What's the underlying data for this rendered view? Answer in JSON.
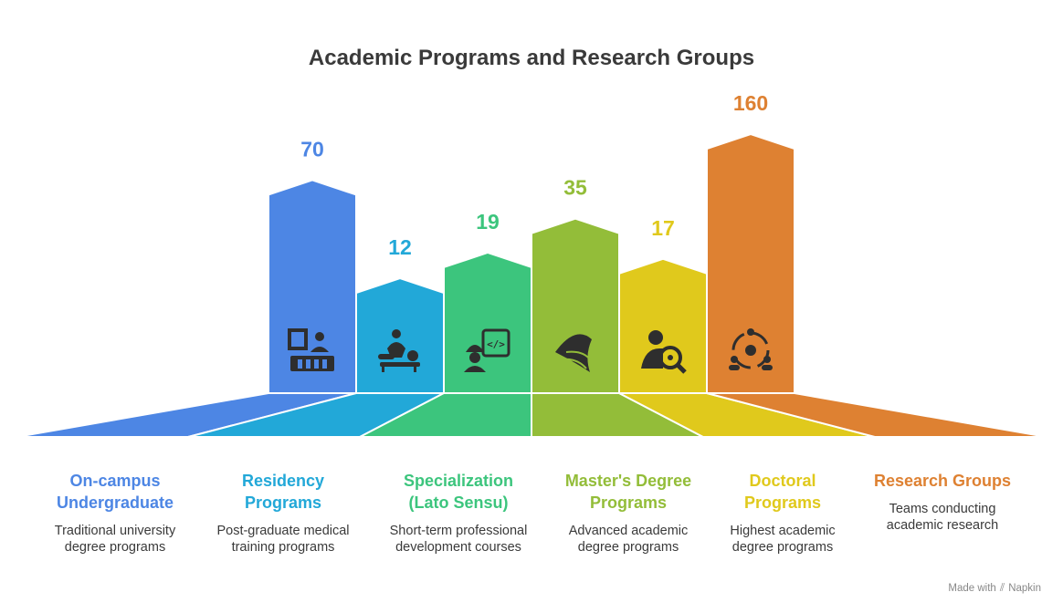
{
  "title": "Academic Programs and Research Groups",
  "footer": {
    "made_with": "Made with",
    "brand": "Napkin"
  },
  "chart_data": {
    "type": "bar",
    "title": "Academic Programs and Research Groups",
    "categories": [
      "On-campus Undergraduate",
      "Residency Programs",
      "Specialization (Lato Sensu)",
      "Master's Degree Programs",
      "Doctoral Programs",
      "Research Groups"
    ],
    "values": [
      70,
      12,
      19,
      35,
      17,
      160
    ],
    "value_labels": [
      "70",
      "12",
      "19",
      "35",
      "17",
      "160"
    ],
    "labels": [
      {
        "title_lines": [
          "On-campus",
          "Undergraduate"
        ],
        "desc_lines": [
          "Traditional university",
          "degree programs"
        ]
      },
      {
        "title_lines": [
          "Residency",
          "Programs"
        ],
        "desc_lines": [
          "Post-graduate medical",
          "training programs"
        ]
      },
      {
        "title_lines": [
          "Specialization",
          "(Lato Sensu)"
        ],
        "desc_lines": [
          "Short-term professional",
          "development courses"
        ]
      },
      {
        "title_lines": [
          "Master's Degree",
          "Programs"
        ],
        "desc_lines": [
          "Advanced academic",
          "degree programs"
        ]
      },
      {
        "title_lines": [
          "Doctoral",
          "Programs"
        ],
        "desc_lines": [
          "Highest academic",
          "degree programs"
        ]
      },
      {
        "title_lines": [
          "Research Groups"
        ],
        "desc_lines": [
          "Teams conducting",
          "academic research"
        ]
      }
    ],
    "icons": [
      "classroom-lecture-icon",
      "medical-treatment-icon",
      "developer-worker-icon",
      "diploma-scroll-icon",
      "researcher-search-icon",
      "research-group-icon"
    ],
    "colors": [
      "#4D86E4",
      "#22A8D8",
      "#3CC57D",
      "#93BD39",
      "#E0C91C",
      "#DE8132"
    ],
    "grid": false,
    "legend": "none"
  }
}
